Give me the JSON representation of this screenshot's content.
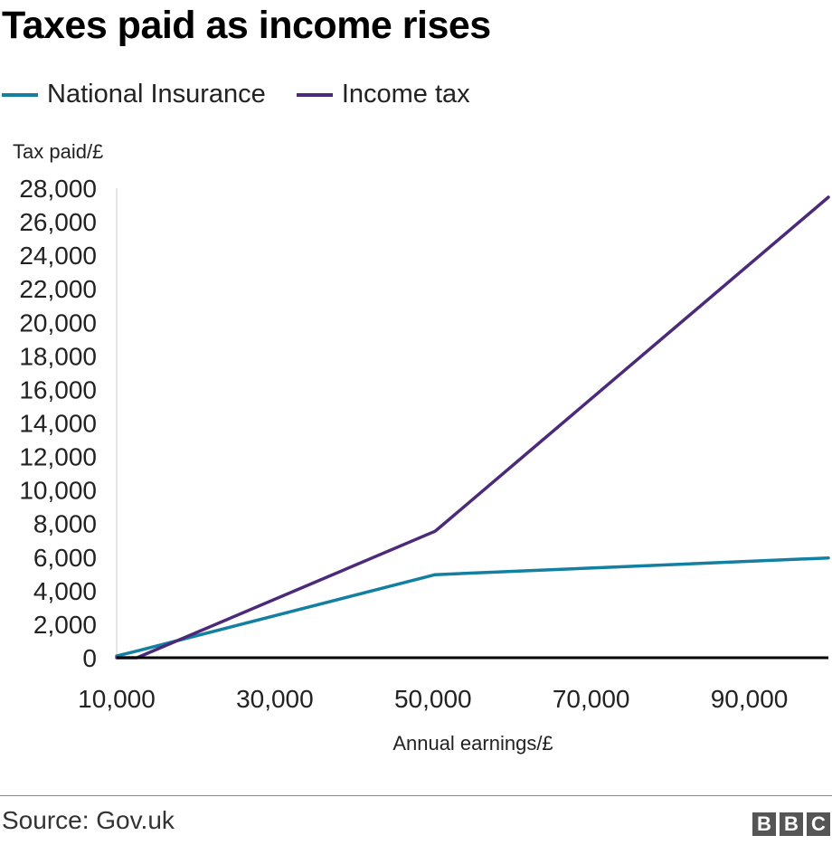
{
  "chart_data": {
    "type": "line",
    "title": "Taxes paid as income rises",
    "ylabel": "Tax paid/£",
    "xlabel": "Annual earnings/£",
    "xlim": [
      10000,
      100000
    ],
    "ylim": [
      0,
      28000
    ],
    "x_ticks": [
      10000,
      30000,
      50000,
      70000,
      90000
    ],
    "x_tick_labels": [
      "10,000",
      "30,000",
      "50,000",
      "70,000",
      "90,000"
    ],
    "y_ticks": [
      0,
      2000,
      4000,
      6000,
      8000,
      10000,
      12000,
      14000,
      16000,
      18000,
      20000,
      22000,
      24000,
      26000,
      28000
    ],
    "y_tick_labels": [
      "0",
      "2,000",
      "4,000",
      "6,000",
      "8,000",
      "10,000",
      "12,000",
      "14,000",
      "16,000",
      "18,000",
      "20,000",
      "22,000",
      "24,000",
      "26,000",
      "28,000"
    ],
    "grid": false,
    "legend_position": "top-left",
    "series": [
      {
        "name": "National Insurance",
        "color": "#1380a1",
        "points": [
          [
            10000,
            100
          ],
          [
            12570,
            400
          ],
          [
            50270,
            4950
          ],
          [
            100000,
            5950
          ]
        ]
      },
      {
        "name": "Income tax",
        "color": "#4b2a7a",
        "points": [
          [
            10000,
            0
          ],
          [
            12570,
            0
          ],
          [
            50270,
            7540
          ],
          [
            51000,
            7830
          ],
          [
            100000,
            27460
          ]
        ]
      }
    ]
  },
  "footer": {
    "source": "Source: Gov.uk",
    "logo_letters": [
      "B",
      "B",
      "C"
    ]
  }
}
